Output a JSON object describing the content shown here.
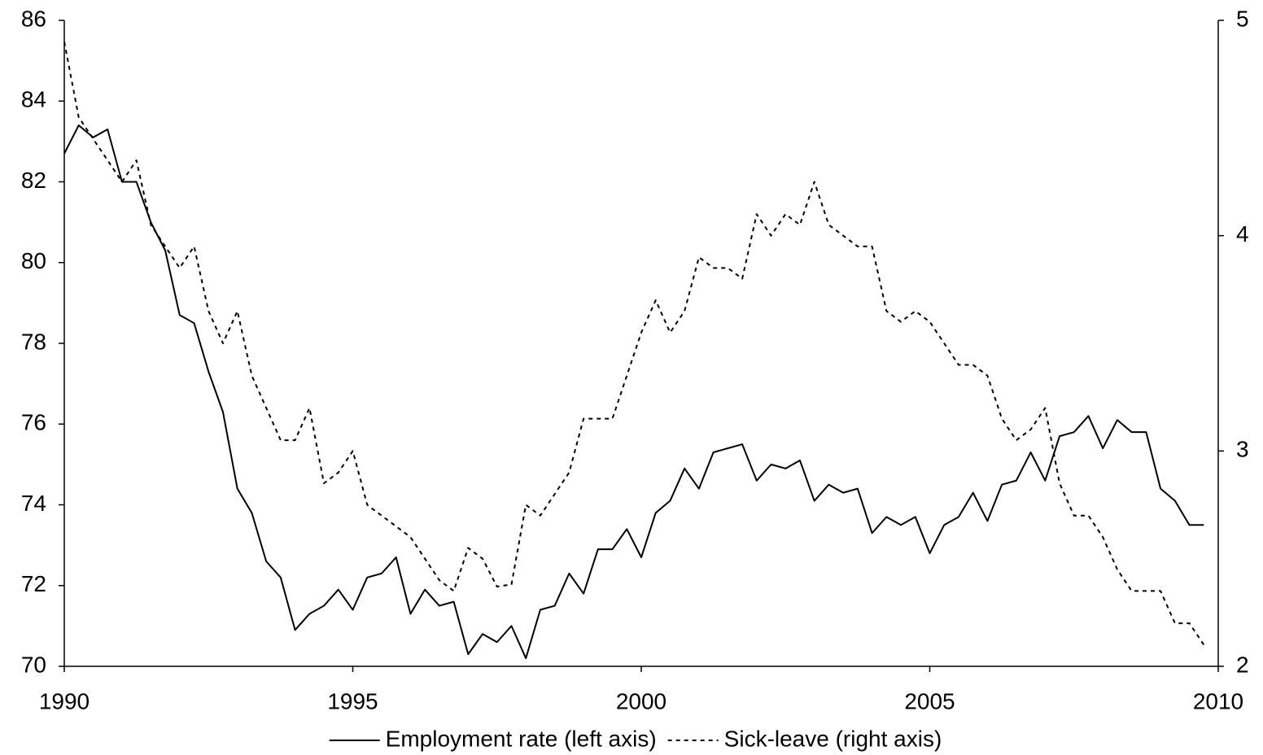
{
  "chart_data": {
    "type": "line",
    "x": [
      1990,
      1990.25,
      1990.5,
      1990.75,
      1991,
      1991.25,
      1991.5,
      1991.75,
      1992,
      1992.25,
      1992.5,
      1992.75,
      1993,
      1993.25,
      1993.5,
      1993.75,
      1994,
      1994.25,
      1994.5,
      1994.75,
      1995,
      1995.25,
      1995.5,
      1995.75,
      1996,
      1996.25,
      1996.5,
      1996.75,
      1997,
      1997.25,
      1997.5,
      1997.75,
      1998,
      1998.25,
      1998.5,
      1998.75,
      1999,
      1999.25,
      1999.5,
      1999.75,
      2000,
      2000.25,
      2000.5,
      2000.75,
      2001,
      2001.25,
      2001.5,
      2001.75,
      2002,
      2002.25,
      2002.5,
      2002.75,
      2003,
      2003.25,
      2003.5,
      2003.75,
      2004,
      2004.25,
      2004.5,
      2004.75,
      2005,
      2005.25,
      2005.5,
      2005.75,
      2006,
      2006.25,
      2006.5,
      2006.75,
      2007,
      2007.25,
      2007.5,
      2007.75,
      2008,
      2008.25,
      2008.5,
      2008.75,
      2009,
      2009.25,
      2009.5,
      2009.75
    ],
    "series": [
      {
        "name": "Employment rate (left axis)",
        "color": "#000000",
        "style": "solid",
        "axis": "y",
        "values": [
          82.7,
          83.4,
          83.1,
          83.3,
          82.0,
          82.0,
          81.0,
          80.3,
          78.7,
          78.5,
          77.3,
          76.3,
          74.4,
          73.8,
          72.6,
          72.2,
          70.9,
          71.3,
          71.5,
          71.9,
          71.4,
          72.2,
          72.3,
          72.7,
          71.3,
          71.9,
          71.5,
          71.6,
          70.3,
          70.8,
          70.6,
          71.0,
          70.2,
          71.4,
          71.5,
          72.3,
          71.8,
          72.9,
          72.9,
          73.4,
          72.7,
          73.8,
          74.1,
          74.9,
          74.4,
          75.3,
          75.4,
          75.5,
          74.6,
          75.0,
          74.9,
          75.1,
          74.1,
          74.5,
          74.3,
          74.4,
          73.3,
          73.7,
          73.5,
          73.7,
          72.8,
          73.5,
          73.7,
          74.3,
          73.6,
          74.5,
          74.6,
          75.3,
          74.6,
          75.7,
          75.8,
          76.2,
          75.4,
          76.1,
          75.8,
          75.8,
          74.4,
          74.1,
          73.5,
          73.5
        ]
      },
      {
        "name": "Sick-leave (right axis)",
        "color": "#000000",
        "style": "dotted",
        "axis": "y2",
        "values": [
          4.9,
          4.55,
          4.45,
          4.35,
          4.25,
          4.35,
          4.05,
          3.95,
          3.85,
          3.95,
          3.65,
          3.5,
          3.65,
          3.35,
          3.2,
          3.05,
          3.05,
          3.2,
          2.85,
          2.9,
          3.0,
          2.75,
          2.7,
          2.65,
          2.6,
          2.5,
          2.4,
          2.35,
          2.55,
          2.5,
          2.37,
          2.38,
          2.75,
          2.7,
          2.8,
          2.9,
          3.15,
          3.15,
          3.15,
          3.35,
          3.55,
          3.7,
          3.55,
          3.65,
          3.9,
          3.85,
          3.85,
          3.8,
          4.1,
          4.0,
          4.1,
          4.05,
          4.25,
          4.05,
          4.0,
          3.95,
          3.95,
          3.65,
          3.6,
          3.65,
          3.6,
          3.5,
          3.4,
          3.4,
          3.35,
          3.15,
          3.05,
          3.1,
          3.2,
          2.85,
          2.7,
          2.7,
          2.6,
          2.45,
          2.35,
          2.35,
          2.35,
          2.2,
          2.2,
          2.1
        ]
      }
    ],
    "xlim": [
      1990,
      2010
    ],
    "xticks": [
      1990,
      1995,
      2000,
      2005,
      2010
    ],
    "ylim": [
      70,
      86
    ],
    "yticks": [
      70,
      72,
      74,
      76,
      78,
      80,
      82,
      84,
      86
    ],
    "y2lim": [
      2,
      5
    ],
    "y2ticks": [
      2,
      3,
      4,
      5
    ],
    "legend": "bottom"
  }
}
